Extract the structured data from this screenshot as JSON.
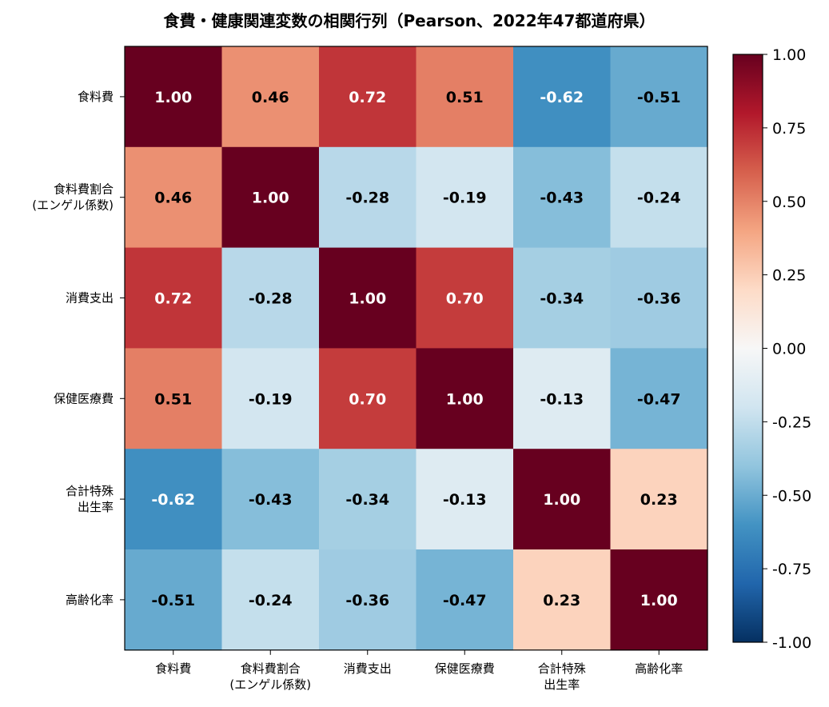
{
  "chart_data": {
    "type": "heatmap",
    "title": "食費・健康関連変数の相関行列（Pearson、2022年47都道府県）",
    "rows": [
      [
        "食料費"
      ],
      [
        "食料費割合",
        "(エンゲル係数)"
      ],
      [
        "消費支出"
      ],
      [
        "保健医療費"
      ],
      [
        "合計特殊",
        "出生率"
      ],
      [
        "高齢化率"
      ]
    ],
    "columns": [
      [
        "食料費"
      ],
      [
        "食料費割合",
        "(エンゲル係数)"
      ],
      [
        "消費支出"
      ],
      [
        "保健医療費"
      ],
      [
        "合計特殊",
        "出生率"
      ],
      [
        "高齢化率"
      ]
    ],
    "values": [
      [
        1.0,
        0.46,
        0.72,
        0.51,
        -0.62,
        -0.51
      ],
      [
        0.46,
        1.0,
        -0.28,
        -0.19,
        -0.43,
        -0.24
      ],
      [
        0.72,
        -0.28,
        1.0,
        0.7,
        -0.34,
        -0.36
      ],
      [
        0.51,
        -0.19,
        0.7,
        1.0,
        -0.13,
        -0.47
      ],
      [
        -0.62,
        -0.43,
        -0.34,
        -0.13,
        1.0,
        0.23
      ],
      [
        -0.51,
        -0.24,
        -0.36,
        -0.47,
        0.23,
        1.0
      ]
    ],
    "value_labels": [
      [
        "1.00",
        "0.46",
        "0.72",
        "0.51",
        "-0.62",
        "-0.51"
      ],
      [
        "0.46",
        "1.00",
        "-0.28",
        "-0.19",
        "-0.43",
        "-0.24"
      ],
      [
        "0.72",
        "-0.28",
        "1.00",
        "0.70",
        "-0.34",
        "-0.36"
      ],
      [
        "0.51",
        "-0.19",
        "0.70",
        "1.00",
        "-0.13",
        "-0.47"
      ],
      [
        "-0.62",
        "-0.43",
        "-0.34",
        "-0.13",
        "1.00",
        "0.23"
      ],
      [
        "-0.51",
        "-0.24",
        "-0.36",
        "-0.47",
        "0.23",
        "1.00"
      ]
    ],
    "colorbar": {
      "range": [
        -1,
        1
      ],
      "ticks": [
        1.0,
        0.75,
        0.5,
        0.25,
        0.0,
        -0.25,
        -0.5,
        -0.75,
        -1.0
      ],
      "tick_labels": [
        "1.00",
        "0.75",
        "0.50",
        "0.25",
        "0.00",
        "-0.25",
        "-0.50",
        "-0.75",
        "-1.00"
      ],
      "colormap": "RdBu_r",
      "stops": [
        "#053061",
        "#2166ac",
        "#4393c3",
        "#92c5de",
        "#d1e5f0",
        "#f7f7f7",
        "#fddbc7",
        "#f4a582",
        "#d6604d",
        "#b2182b",
        "#67001f"
      ]
    }
  }
}
